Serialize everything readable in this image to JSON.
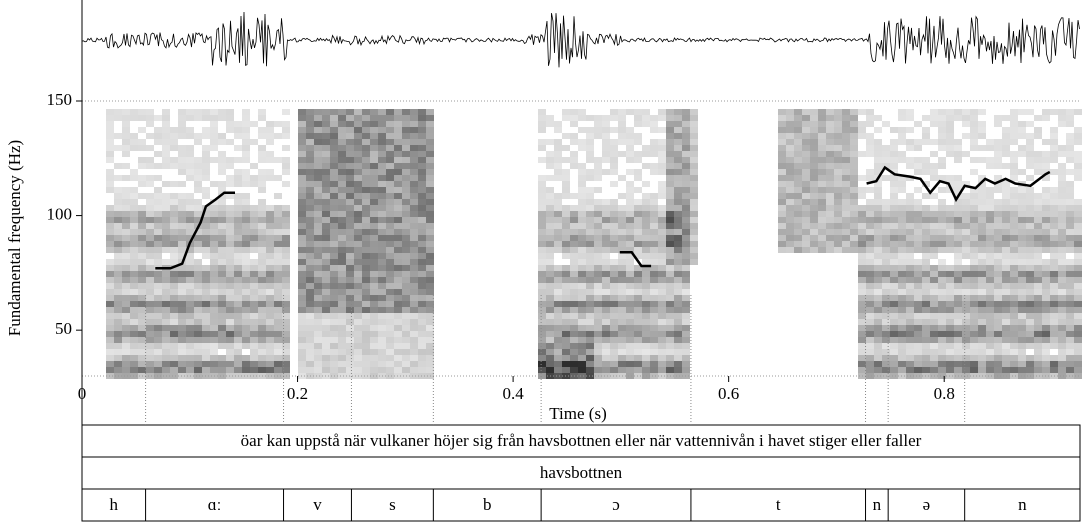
{
  "chart_data": {
    "type": "line",
    "x_label": "Time (s)",
    "y_label": "Fundamental frequency (Hz)",
    "xlim": [
      0,
      0.926
    ],
    "ylim": [
      30,
      150
    ],
    "xticks": [
      0,
      0.2,
      0.4,
      0.6,
      0.8
    ],
    "yticks": [
      50,
      100,
      150
    ],
    "x": [
      0.068,
      0.082,
      0.093,
      0.1,
      0.11,
      0.115,
      0.124,
      0.132,
      0.142,
      null,
      0.499,
      0.51,
      0.519,
      0.528,
      null,
      0.728,
      0.737,
      0.745,
      0.754,
      0.768,
      0.778,
      0.787,
      0.796,
      0.804,
      0.811,
      0.819,
      0.829,
      0.838,
      0.847,
      0.857,
      0.866,
      0.88,
      0.894,
      0.898
    ],
    "values": [
      77,
      77,
      79,
      88,
      97,
      104,
      107,
      110,
      110,
      null,
      84,
      84,
      78,
      78,
      null,
      114,
      115,
      121,
      118,
      117,
      116,
      110,
      115,
      114,
      107,
      113,
      112,
      116,
      114,
      116,
      114,
      113,
      118,
      119
    ],
    "color": "#000000",
    "tiers": [
      {
        "label": "öar kan uppstå när vulkaner höjer sig från havsbottnen eller när vattennivån i havet stiger eller faller"
      },
      {
        "label": "havsbottnen"
      },
      {
        "boundaries": [
          0,
          0.059,
          0.187,
          0.25,
          0.326,
          0.426,
          0.565,
          0.727,
          0.748,
          0.819,
          0.926
        ],
        "labels": [
          "h",
          "ɑː",
          "v",
          "s",
          "b",
          "ɔ",
          "t",
          "n",
          "ə",
          "n"
        ]
      }
    ]
  }
}
